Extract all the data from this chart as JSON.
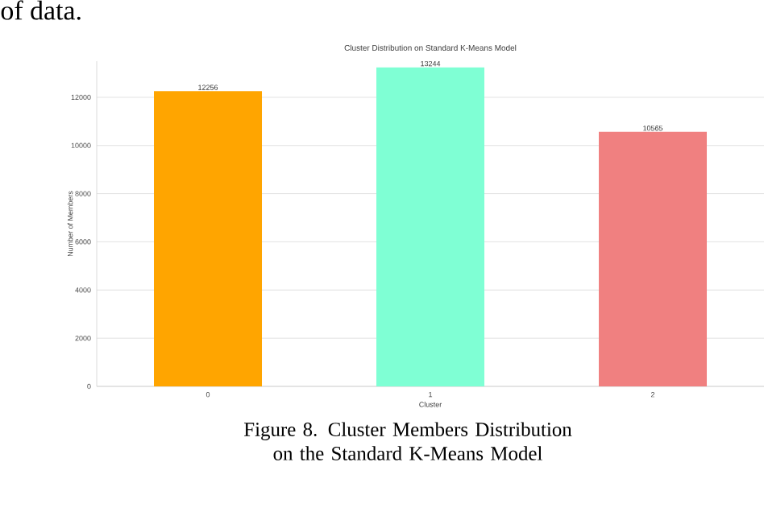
{
  "chart_data": {
    "type": "bar",
    "title": "Cluster Distribution on Standard K-Means Model",
    "xlabel": "Cluster",
    "ylabel": "Number of Members",
    "categories": [
      "0",
      "1",
      "2"
    ],
    "values": [
      12256,
      13244,
      10565
    ],
    "colors": [
      "#ffa500",
      "#7fffd4",
      "#f08080"
    ],
    "data_labels": true,
    "ylim": [
      0,
      13500
    ],
    "yticks": [
      0,
      2000,
      4000,
      6000,
      8000,
      10000,
      12000
    ],
    "grid": "y",
    "annotations": [
      "of data.",
      "Figure 8. Cluster Members Distribution on the Standard K-Means Model"
    ]
  }
}
